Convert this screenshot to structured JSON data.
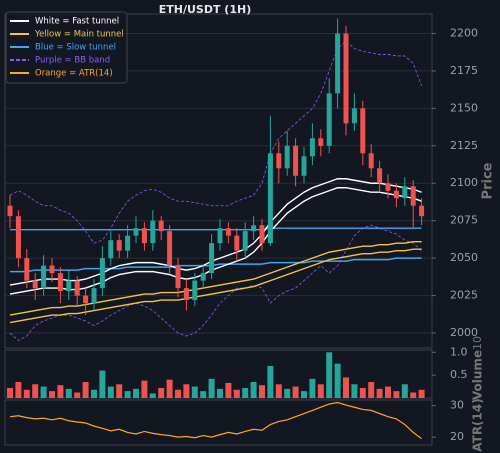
{
  "chart_data": [
    {
      "type": "candlestick",
      "title": "ETH/USDT (1H)",
      "y_label": "Price",
      "ylim": [
        1990,
        2213
      ],
      "yticks": [
        2000,
        2025,
        2050,
        2075,
        2100,
        2125,
        2150,
        2175,
        2200
      ],
      "grid": true,
      "up_color": "#26a69a",
      "down_color": "#ef5350",
      "open": [
        2085,
        2078,
        2050,
        2035,
        2030,
        2045,
        2040,
        2028,
        2035,
        2025,
        2020,
        2030,
        2050,
        2062,
        2055,
        2065,
        2070,
        2060,
        2075,
        2068,
        2045,
        2030,
        2022,
        2035,
        2040,
        2060,
        2070,
        2065,
        2055,
        2068,
        2072,
        2060,
        2120,
        2110,
        2125,
        2105,
        2118,
        2130,
        2125,
        2160,
        2200,
        2140,
        2150,
        2120,
        2110,
        2100,
        2095,
        2090,
        2098,
        2085
      ],
      "high": [
        2092,
        2082,
        2056,
        2040,
        2052,
        2050,
        2044,
        2042,
        2038,
        2030,
        2036,
        2058,
        2068,
        2066,
        2072,
        2078,
        2074,
        2082,
        2078,
        2072,
        2050,
        2036,
        2040,
        2046,
        2066,
        2076,
        2074,
        2070,
        2074,
        2078,
        2076,
        2145,
        2128,
        2135,
        2130,
        2124,
        2140,
        2136,
        2170,
        2210,
        2205,
        2160,
        2155,
        2126,
        2115,
        2106,
        2100,
        2104,
        2102,
        2090
      ],
      "low": [
        2070,
        2044,
        2030,
        2022,
        2025,
        2034,
        2020,
        2022,
        2018,
        2012,
        2015,
        2025,
        2045,
        2050,
        2050,
        2060,
        2055,
        2055,
        2062,
        2040,
        2024,
        2015,
        2018,
        2030,
        2036,
        2055,
        2060,
        2048,
        2050,
        2062,
        2055,
        2058,
        2100,
        2105,
        2098,
        2100,
        2112,
        2118,
        2120,
        2150,
        2132,
        2135,
        2112,
        2104,
        2094,
        2090,
        2084,
        2085,
        2070,
        2072
      ],
      "close": [
        2078,
        2050,
        2035,
        2030,
        2045,
        2040,
        2028,
        2035,
        2025,
        2020,
        2030,
        2050,
        2062,
        2055,
        2065,
        2070,
        2060,
        2075,
        2068,
        2045,
        2030,
        2022,
        2035,
        2040,
        2060,
        2070,
        2065,
        2055,
        2068,
        2072,
        2060,
        2120,
        2110,
        2125,
        2105,
        2118,
        2130,
        2125,
        2160,
        2200,
        2140,
        2150,
        2120,
        2110,
        2100,
        2095,
        2090,
        2098,
        2085,
        2078
      ],
      "overlays": [
        {
          "name": "Purple = BB band",
          "color": "#8b5cf6",
          "dashed": true,
          "lines": [
            [
              2092,
              2095,
              2092,
              2088,
              2085,
              2085,
              2082,
              2080,
              2075,
              2068,
              2060,
              2062,
              2070,
              2080,
              2088,
              2092,
              2095,
              2096,
              2094,
              2090,
              2088,
              2088,
              2087,
              2086,
              2085,
              2085,
              2085,
              2088,
              2090,
              2092,
              2100,
              2120,
              2130,
              2135,
              2140,
              2145,
              2150,
              2160,
              2175,
              2190,
              2195,
              2190,
              2188,
              2187,
              2186,
              2186,
              2185,
              2185,
              2180,
              2165
            ],
            [
              2000,
              1995,
              1998,
              2005,
              2008,
              2010,
              2012,
              2012,
              2010,
              2008,
              2005,
              2008,
              2012,
              2015,
              2018,
              2020,
              2018,
              2015,
              2010,
              2005,
              2000,
              1998,
              2000,
              2005,
              2012,
              2020,
              2025,
              2030,
              2030,
              2032,
              2030,
              2020,
              2025,
              2028,
              2030,
              2035,
              2040,
              2045,
              2040,
              2045,
              2055,
              2065,
              2070,
              2072,
              2070,
              2068,
              2066,
              2062,
              2060,
              2055
            ]
          ]
        },
        {
          "name": "Blue = Slow tunnel",
          "color": "#42a5f5",
          "dashed": false,
          "lines": [
            [
              2069,
              2069,
              2069,
              2069,
              2069,
              2069,
              2069,
              2069,
              2069,
              2069,
              2069,
              2069,
              2069,
              2069,
              2069,
              2069,
              2069,
              2069,
              2069,
              2069,
              2069,
              2069,
              2069,
              2069,
              2069,
              2069,
              2069,
              2069,
              2069,
              2069,
              2069,
              2070,
              2070,
              2070,
              2070,
              2070,
              2070,
              2070,
              2070,
              2070,
              2070,
              2070,
              2070,
              2070,
              2070,
              2070,
              2070,
              2070,
              2070,
              2070
            ],
            [
              2041,
              2041,
              2041,
              2042,
              2042,
              2042,
              2042,
              2042,
              2042,
              2043,
              2043,
              2043,
              2043,
              2043,
              2044,
              2044,
              2044,
              2044,
              2044,
              2044,
              2045,
              2045,
              2045,
              2045,
              2045,
              2046,
              2046,
              2046,
              2046,
              2046,
              2046,
              2047,
              2047,
              2047,
              2047,
              2047,
              2048,
              2048,
              2048,
              2048,
              2048,
              2049,
              2049,
              2049,
              2049,
              2049,
              2050,
              2050,
              2050,
              2050
            ]
          ]
        },
        {
          "name": "Yellow = Main tunnel",
          "color": "#f5c542",
          "dashed": false,
          "lines": [
            [
              2012,
              2013,
              2014,
              2015,
              2016,
              2017,
              2017,
              2018,
              2018,
              2019,
              2020,
              2021,
              2022,
              2023,
              2024,
              2025,
              2026,
              2026,
              2027,
              2027,
              2027,
              2028,
              2029,
              2030,
              2031,
              2032,
              2033,
              2034,
              2035,
              2036,
              2038,
              2040,
              2042,
              2044,
              2046,
              2048,
              2050,
              2052,
              2054,
              2055,
              2056,
              2057,
              2058,
              2058,
              2059,
              2059,
              2060,
              2060,
              2061,
              2061
            ],
            [
              2007,
              2008,
              2009,
              2010,
              2011,
              2012,
              2012,
              2013,
              2013,
              2014,
              2015,
              2016,
              2017,
              2018,
              2019,
              2020,
              2021,
              2021,
              2022,
              2022,
              2022,
              2023,
              2024,
              2025,
              2026,
              2027,
              2028,
              2029,
              2030,
              2031,
              2033,
              2035,
              2037,
              2039,
              2041,
              2043,
              2045,
              2047,
              2049,
              2050,
              2051,
              2052,
              2053,
              2053,
              2054,
              2054,
              2055,
              2055,
              2056,
              2056
            ]
          ]
        },
        {
          "name": "White = Fast tunnel",
          "color": "#ffffff",
          "dashed": false,
          "lines": [
            [
              2032,
              2033,
              2034,
              2035,
              2036,
              2036,
              2036,
              2035,
              2035,
              2036,
              2038,
              2040,
              2043,
              2045,
              2046,
              2047,
              2047,
              2047,
              2046,
              2045,
              2043,
              2042,
              2043,
              2045,
              2048,
              2050,
              2052,
              2054,
              2056,
              2060,
              2066,
              2074,
              2080,
              2086,
              2090,
              2094,
              2097,
              2099,
              2101,
              2103,
              2103,
              2102,
              2101,
              2100,
              2100,
              2099,
              2098,
              2097,
              2096,
              2094
            ],
            [
              2026,
              2027,
              2028,
              2029,
              2030,
              2030,
              2030,
              2029,
              2029,
              2030,
              2032,
              2034,
              2037,
              2039,
              2040,
              2041,
              2041,
              2041,
              2040,
              2039,
              2037,
              2036,
              2037,
              2039,
              2042,
              2044,
              2046,
              2048,
              2050,
              2054,
              2060,
              2068,
              2074,
              2080,
              2084,
              2088,
              2091,
              2093,
              2095,
              2097,
              2097,
              2096,
              2095,
              2094,
              2094,
              2093,
              2092,
              2091,
              2090,
              2088
            ]
          ]
        }
      ]
    },
    {
      "type": "bar",
      "y_label": "Volume",
      "offset_label": "10",
      "ylim": [
        0,
        1.05
      ],
      "yticks": [
        0.5,
        {
          "value": 1,
          "label": "1.0"
        }
      ],
      "values": [
        0.22,
        0.35,
        0.18,
        0.3,
        0.25,
        0.15,
        0.28,
        0.2,
        0.12,
        0.35,
        0.18,
        0.6,
        0.25,
        0.3,
        0.15,
        0.2,
        0.38,
        0.1,
        0.22,
        0.4,
        0.18,
        0.3,
        0.25,
        0.15,
        0.42,
        0.2,
        0.33,
        0.18,
        0.22,
        0.35,
        0.28,
        0.7,
        0.3,
        0.2,
        0.25,
        0.15,
        0.42,
        0.3,
        1.0,
        0.75,
        0.45,
        0.3,
        0.22,
        0.35,
        0.2,
        0.25,
        0.15,
        0.3,
        0.12,
        0.18
      ]
    },
    {
      "type": "line",
      "y_label": "ATR(14)",
      "ylim": [
        17.5,
        31.8
      ],
      "yticks": [
        20,
        30
      ],
      "series": [
        {
          "name": "Orange = ATR(14)",
          "color": "#ffa726",
          "values": [
            26.5,
            26.8,
            26.2,
            25.8,
            26.0,
            25.5,
            26.0,
            25.2,
            24.8,
            24.5,
            23.5,
            22.8,
            22.0,
            22.5,
            21.5,
            21.0,
            21.8,
            21.2,
            20.8,
            20.5,
            20.0,
            20.2,
            19.8,
            20.5,
            20.0,
            20.8,
            21.5,
            21.0,
            21.8,
            22.5,
            22.2,
            24.0,
            25.0,
            25.5,
            26.5,
            27.5,
            28.5,
            29.5,
            30.5,
            31.0,
            30.2,
            29.5,
            28.8,
            28.5,
            27.5,
            26.5,
            25.8,
            24.0,
            21.5,
            19.5
          ]
        }
      ]
    }
  ]
}
